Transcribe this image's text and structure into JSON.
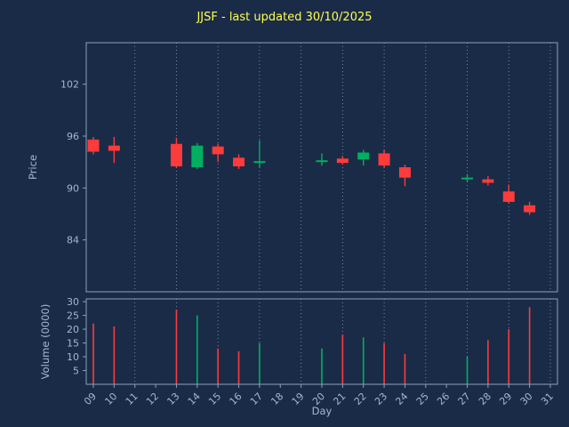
{
  "colors": {
    "background": "#1a2b48",
    "up": "#00b060",
    "down": "#fd3b3b",
    "title": "#ffff4d",
    "axis_text": "#a3b8d0",
    "spine": "#8aa0bb",
    "grid": "#cdd8e6"
  },
  "chart_data": {
    "type": "candlestick",
    "title": "JJSF - last updated 30/10/2025",
    "xlabel": "Day",
    "ylabel_price": "Price",
    "ylabel_volume": "Volume (0000)",
    "x_ticks": [
      "09",
      "10",
      "11",
      "12",
      "13",
      "14",
      "15",
      "16",
      "17",
      "18",
      "19",
      "20",
      "21",
      "22",
      "23",
      "24",
      "25",
      "26",
      "27",
      "28",
      "29",
      "30",
      "31"
    ],
    "x_range": [
      9,
      31
    ],
    "price_ticks": [
      84,
      90,
      96,
      102
    ],
    "price_ylim": [
      78,
      106.8
    ],
    "volume_ticks": [
      5,
      10,
      15,
      20,
      25,
      30
    ],
    "volume_ylim": [
      0,
      31
    ],
    "grid_days": [
      11,
      13,
      15,
      17,
      19,
      21,
      23,
      25,
      27,
      29,
      31
    ],
    "grid_style": "vertical-dotted",
    "legend": "none",
    "candles": [
      {
        "day": 9,
        "open": 95.6,
        "high": 95.9,
        "low": 93.9,
        "close": 94.2,
        "volume": 22,
        "dir": "down"
      },
      {
        "day": 10,
        "open": 94.9,
        "high": 95.9,
        "low": 92.9,
        "close": 94.3,
        "volume": 21,
        "dir": "down"
      },
      {
        "day": 13,
        "open": 95.1,
        "high": 95.8,
        "low": 92.3,
        "close": 92.5,
        "volume": 27,
        "dir": "down"
      },
      {
        "day": 14,
        "open": 92.4,
        "high": 95.2,
        "low": 92.2,
        "close": 94.9,
        "volume": 25,
        "dir": "up"
      },
      {
        "day": 15,
        "open": 94.8,
        "high": 95.1,
        "low": 93.0,
        "close": 93.9,
        "volume": 13,
        "dir": "down"
      },
      {
        "day": 16,
        "open": 93.5,
        "high": 93.9,
        "low": 92.2,
        "close": 92.5,
        "volume": 12,
        "dir": "down"
      },
      {
        "day": 17,
        "open": 93.0,
        "high": 95.5,
        "low": 92.4,
        "close": 93.0,
        "volume": 15,
        "dir": "up"
      },
      {
        "day": 20,
        "open": 93.1,
        "high": 94.0,
        "low": 92.6,
        "close": 93.1,
        "volume": 13,
        "dir": "up"
      },
      {
        "day": 21,
        "open": 93.4,
        "high": 93.7,
        "low": 92.7,
        "close": 92.9,
        "volume": 18,
        "dir": "down"
      },
      {
        "day": 22,
        "open": 93.3,
        "high": 94.4,
        "low": 92.6,
        "close": 94.1,
        "volume": 17,
        "dir": "up"
      },
      {
        "day": 23,
        "open": 94.0,
        "high": 94.4,
        "low": 92.3,
        "close": 92.6,
        "volume": 15,
        "dir": "down"
      },
      {
        "day": 24,
        "open": 92.4,
        "high": 92.7,
        "low": 90.2,
        "close": 91.2,
        "volume": 11,
        "dir": "down"
      },
      {
        "day": 27,
        "open": 91.1,
        "high": 91.6,
        "low": 90.7,
        "close": 91.1,
        "volume": 10,
        "dir": "up"
      },
      {
        "day": 28,
        "open": 91.0,
        "high": 91.4,
        "low": 90.3,
        "close": 90.6,
        "volume": 16,
        "dir": "down"
      },
      {
        "day": 29,
        "open": 89.6,
        "high": 90.4,
        "low": 88.2,
        "close": 88.4,
        "volume": 20,
        "dir": "down"
      },
      {
        "day": 30,
        "open": 88.0,
        "high": 88.4,
        "low": 86.9,
        "close": 87.2,
        "volume": 28,
        "dir": "down"
      }
    ]
  }
}
